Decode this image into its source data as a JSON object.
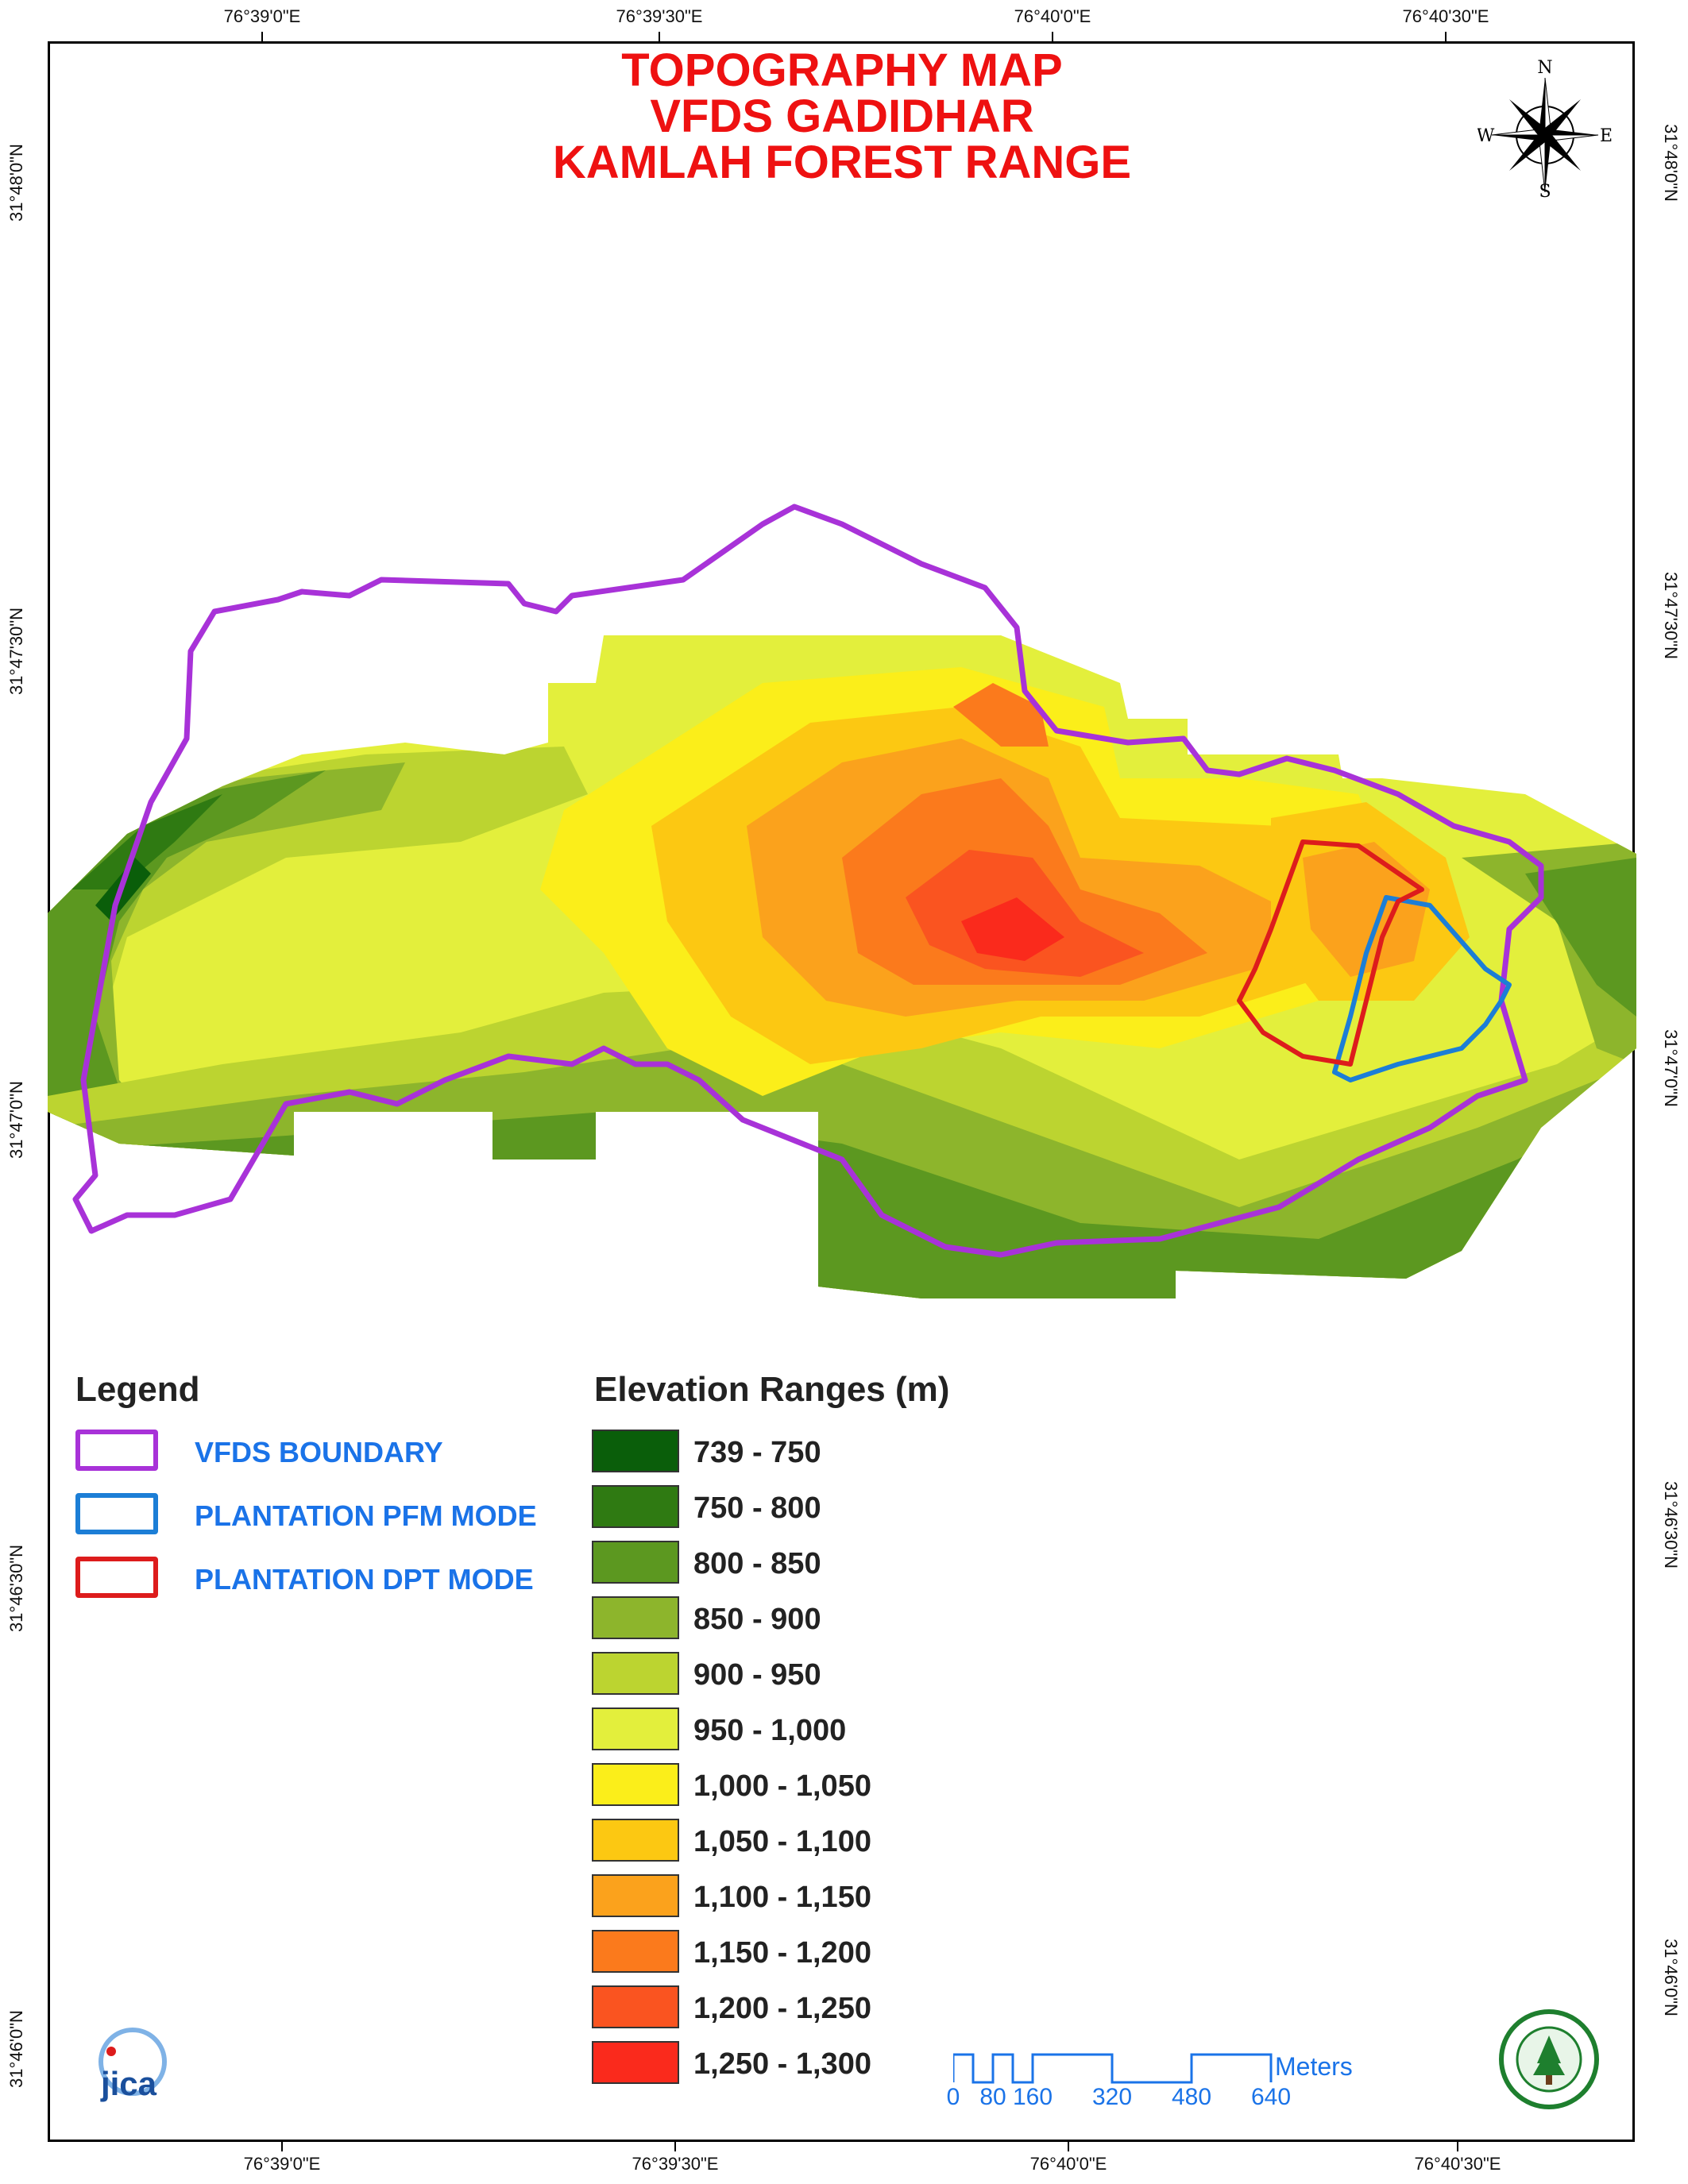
{
  "title": {
    "line1": "TOPOGRAPHY MAP",
    "line2": "VFDS GADIDHAR",
    "line3": "KAMLAH FOREST RANGE"
  },
  "coords": {
    "top": [
      "76°39'0\"E",
      "76°39'30\"E",
      "76°40'0\"E",
      "76°40'30\"E"
    ],
    "bottom": [
      "76°39'0\"E",
      "76°39'30\"E",
      "76°40'0\"E",
      "76°40'30\"E"
    ],
    "left": [
      "31°48'0\"N",
      "31°47'30\"N",
      "31°47'0\"N",
      "31°46'30\"N",
      "31°46'0\"N"
    ],
    "right": [
      "31°48'0\"N",
      "31°47'30\"N",
      "31°47'0\"N",
      "31°46'30\"N",
      "31°46'0\"N"
    ]
  },
  "compass": {
    "n": "N",
    "s": "S",
    "e": "E",
    "w": "W"
  },
  "legend": {
    "title": "Legend",
    "items": [
      {
        "label": "VFDS BOUNDARY",
        "color": "#a832d8"
      },
      {
        "label": "PLANTATION PFM MODE",
        "color": "#1c7ed6"
      },
      {
        "label": "PLANTATION DPT MODE",
        "color": "#dd1c1c"
      }
    ]
  },
  "elevation": {
    "title": "Elevation Ranges (m)",
    "ranges": [
      {
        "label": "739 - 750",
        "color": "#0a5e0a"
      },
      {
        "label": "750 - 800",
        "color": "#2f7a12"
      },
      {
        "label": "800 - 850",
        "color": "#5c9820"
      },
      {
        "label": "850 - 900",
        "color": "#8db52c"
      },
      {
        "label": "900 - 950",
        "color": "#bcd430"
      },
      {
        "label": "950 - 1,000",
        "color": "#e3ef3c"
      },
      {
        "label": "1,000 - 1,050",
        "color": "#fbee1a"
      },
      {
        "label": "1,050 - 1,100",
        "color": "#fcc812"
      },
      {
        "label": "1,100 - 1,150",
        "color": "#fba21c"
      },
      {
        "label": "1,150 - 1,200",
        "color": "#fb7a1c"
      },
      {
        "label": "1,200 - 1,250",
        "color": "#fa5420"
      },
      {
        "label": "1,250 - 1,300",
        "color": "#fa2a1c"
      }
    ]
  },
  "scale": {
    "labels": [
      "0",
      "80",
      "160",
      "320",
      "480",
      "640"
    ],
    "unit": "Meters"
  },
  "logos": {
    "left": "jica-logo",
    "right": "forest-dept-seal",
    "left_text": "jica"
  }
}
